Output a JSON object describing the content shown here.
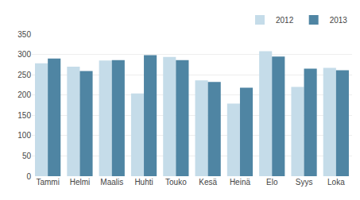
{
  "chart_data": {
    "type": "bar",
    "categories": [
      "Tammi",
      "Helmi",
      "Maalis",
      "Huhti",
      "Touko",
      "Kesä",
      "Heinä",
      "Elo",
      "Syys",
      "Loka"
    ],
    "series": [
      {
        "name": "2012",
        "color": "#c5dce9",
        "values": [
          278,
          270,
          285,
          204,
          294,
          236,
          179,
          308,
          220,
          267
        ]
      },
      {
        "name": "2013",
        "color": "#4f85a3",
        "values": [
          290,
          259,
          286,
          298,
          286,
          232,
          218,
          295,
          265,
          261
        ]
      }
    ],
    "ylim": [
      0,
      350
    ],
    "yticks": [
      0,
      50,
      100,
      150,
      200,
      250,
      300,
      350
    ],
    "grid": true,
    "legend": "upper right"
  }
}
